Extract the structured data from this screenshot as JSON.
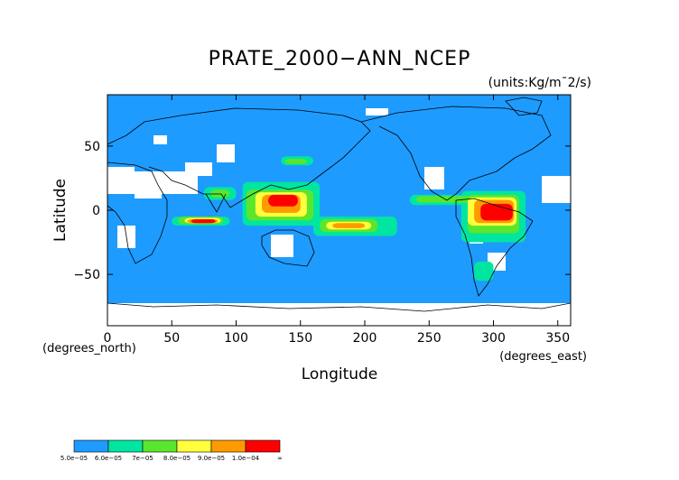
{
  "chart_data": {
    "type": "heatmap",
    "title": "PRATE_2000−ANN_NCEP",
    "units": "(units:Kg/m¯2/s)",
    "xlabel": "Longitude",
    "ylabel": "Latitude",
    "x_unit_label": "(degrees_east)",
    "y_unit_label": "(degrees_north)",
    "xlim": [
      0,
      360
    ],
    "ylim": [
      -90,
      90
    ],
    "x_ticks": [
      {
        "value": 0,
        "label": "0"
      },
      {
        "value": 50,
        "label": "50"
      },
      {
        "value": 100,
        "label": "100"
      },
      {
        "value": 150,
        "label": "150"
      },
      {
        "value": 200,
        "label": "200"
      },
      {
        "value": 250,
        "label": "250"
      },
      {
        "value": 300,
        "label": "300"
      },
      {
        "value": 350,
        "label": "350"
      }
    ],
    "y_ticks": [
      {
        "value": 50,
        "label": "50"
      },
      {
        "value": 0,
        "label": "0"
      },
      {
        "value": -50,
        "label": "−50"
      }
    ],
    "colorbar": {
      "levels": [
        {
          "label": "5.0e−05",
          "color": "#1e9bff"
        },
        {
          "label": "6.0e−05",
          "color": "#00e6a0"
        },
        {
          "label": "7e−05",
          "color": "#5ae62d"
        },
        {
          "label": "8.0e−05",
          "color": "#ffff3c"
        },
        {
          "label": "9.0e−05",
          "color": "#ff9b00"
        },
        {
          "label": "1.0e−04",
          "color": "#ff0000"
        },
        {
          "label": "∞",
          "color": ""
        }
      ]
    },
    "background_color": "#1e9bff",
    "below_min_color": "#ffffff",
    "regions": [
      {
        "level": 1,
        "lon": [
          50,
          95
        ],
        "lat": [
          -5,
          -12
        ]
      },
      {
        "level": 1,
        "lon": [
          75,
          100
        ],
        "lat": [
          8,
          18
        ]
      },
      {
        "level": 1,
        "lon": [
          105,
          165
        ],
        "lat": [
          -12,
          22
        ]
      },
      {
        "level": 1,
        "lon": [
          135,
          160
        ],
        "lat": [
          35,
          42
        ]
      },
      {
        "level": 1,
        "lon": [
          160,
          225
        ],
        "lat": [
          -20,
          -5
        ]
      },
      {
        "level": 1,
        "lon": [
          235,
          290
        ],
        "lat": [
          4,
          12
        ]
      },
      {
        "level": 1,
        "lon": [
          275,
          325
        ],
        "lat": [
          -25,
          15
        ]
      },
      {
        "level": 1,
        "lon": [
          285,
          300
        ],
        "lat": [
          -55,
          -40
        ]
      },
      {
        "level": 2,
        "lon": [
          55,
          90
        ],
        "lat": [
          -5,
          -11
        ]
      },
      {
        "level": 2,
        "lon": [
          80,
          95
        ],
        "lat": [
          10,
          16
        ]
      },
      {
        "level": 2,
        "lon": [
          108,
          160
        ],
        "lat": [
          -8,
          16
        ]
      },
      {
        "level": 2,
        "lon": [
          138,
          155
        ],
        "lat": [
          36,
          40
        ]
      },
      {
        "level": 2,
        "lon": [
          165,
          210
        ],
        "lat": [
          -17,
          -7
        ]
      },
      {
        "level": 2,
        "lon": [
          240,
          285
        ],
        "lat": [
          6,
          11
        ]
      },
      {
        "level": 2,
        "lon": [
          280,
          320
        ],
        "lat": [
          -18,
          12
        ]
      },
      {
        "level": 3,
        "lon": [
          60,
          88
        ],
        "lat": [
          -6,
          -10
        ]
      },
      {
        "level": 3,
        "lon": [
          115,
          155
        ],
        "lat": [
          -5,
          14
        ]
      },
      {
        "level": 3,
        "lon": [
          170,
          205
        ],
        "lat": [
          -15,
          -9
        ]
      },
      {
        "level": 3,
        "lon": [
          280,
          318
        ],
        "lat": [
          -12,
          10
        ]
      },
      {
        "level": 4,
        "lon": [
          62,
          86
        ],
        "lat": [
          -7,
          -10
        ]
      },
      {
        "level": 4,
        "lon": [
          120,
          150
        ],
        "lat": [
          -2,
          12
        ]
      },
      {
        "level": 4,
        "lon": [
          175,
          200
        ],
        "lat": [
          -14,
          -10
        ]
      },
      {
        "level": 4,
        "lon": [
          285,
          316
        ],
        "lat": [
          -10,
          8
        ]
      },
      {
        "level": 5,
        "lon": [
          65,
          84
        ],
        "lat": [
          -7,
          -10
        ]
      },
      {
        "level": 5,
        "lon": [
          125,
          148
        ],
        "lat": [
          3,
          12
        ]
      },
      {
        "level": 5,
        "lon": [
          290,
          315
        ],
        "lat": [
          -8,
          5
        ]
      }
    ]
  }
}
